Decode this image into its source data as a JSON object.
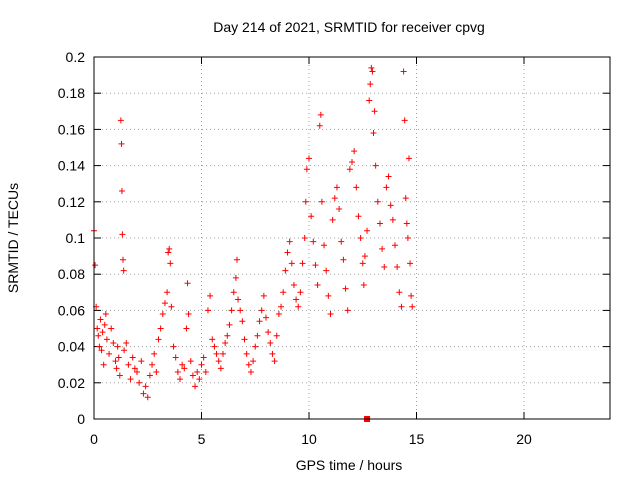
{
  "chart_data": {
    "type": "scatter",
    "title": "Day 214 of 2021, SRMTID for receiver cpvg",
    "xlabel": "GPS time / hours",
    "ylabel": "SRMTID / TECUs",
    "xlim": [
      0,
      24
    ],
    "ylim": [
      0,
      0.2
    ],
    "grid": true,
    "marker": "+",
    "xticks": [
      0,
      5,
      10,
      15,
      20
    ],
    "xtick_labels": [
      "0",
      "5",
      "10",
      "15",
      "20"
    ],
    "yticks": [
      0,
      0.02,
      0.04,
      0.06,
      0.08,
      0.1,
      0.12,
      0.14,
      0.16,
      0.18,
      0.2
    ],
    "ytick_labels": [
      "0",
      "0.02",
      "0.04",
      "0.06",
      "0.08",
      "0.1",
      "0.12",
      "0.14",
      "0.16",
      "0.18",
      "0.2"
    ],
    "series": [
      {
        "name": "SRMTID",
        "color": "#ff0000",
        "points": [
          [
            0.0,
            0.104
          ],
          [
            0.05,
            0.085
          ],
          [
            0.1,
            0.062
          ],
          [
            0.15,
            0.05
          ],
          [
            0.2,
            0.046
          ],
          [
            0.25,
            0.04
          ],
          [
            0.3,
            0.055
          ],
          [
            0.35,
            0.038
          ],
          [
            0.4,
            0.048
          ],
          [
            0.45,
            0.03
          ],
          [
            0.5,
            0.052
          ],
          [
            0.55,
            0.058
          ],
          [
            0.6,
            0.044
          ],
          [
            0.7,
            0.036
          ],
          [
            0.8,
            0.05
          ],
          [
            0.9,
            0.042
          ],
          [
            1.0,
            0.032
          ],
          [
            1.05,
            0.028
          ],
          [
            1.1,
            0.04
          ],
          [
            1.15,
            0.034
          ],
          [
            1.2,
            0.024
          ],
          [
            1.25,
            0.165
          ],
          [
            1.28,
            0.152
          ],
          [
            1.3,
            0.126
          ],
          [
            1.32,
            0.102
          ],
          [
            1.35,
            0.088
          ],
          [
            1.38,
            0.082
          ],
          [
            1.4,
            0.038
          ],
          [
            1.5,
            0.042
          ],
          [
            1.6,
            0.03
          ],
          [
            1.7,
            0.022
          ],
          [
            1.8,
            0.034
          ],
          [
            1.9,
            0.028
          ],
          [
            2.0,
            0.026
          ],
          [
            2.1,
            0.02
          ],
          [
            2.2,
            0.032
          ],
          [
            2.3,
            0.014
          ],
          [
            2.4,
            0.018
          ],
          [
            2.5,
            0.012
          ],
          [
            2.6,
            0.024
          ],
          [
            2.7,
            0.03
          ],
          [
            2.8,
            0.036
          ],
          [
            2.9,
            0.026
          ],
          [
            3.0,
            0.044
          ],
          [
            3.1,
            0.05
          ],
          [
            3.2,
            0.058
          ],
          [
            3.3,
            0.064
          ],
          [
            3.4,
            0.07
          ],
          [
            3.45,
            0.092
          ],
          [
            3.5,
            0.094
          ],
          [
            3.55,
            0.086
          ],
          [
            3.6,
            0.062
          ],
          [
            3.7,
            0.04
          ],
          [
            3.8,
            0.034
          ],
          [
            3.9,
            0.026
          ],
          [
            4.0,
            0.022
          ],
          [
            4.1,
            0.03
          ],
          [
            4.2,
            0.028
          ],
          [
            4.3,
            0.05
          ],
          [
            4.35,
            0.075
          ],
          [
            4.4,
            0.058
          ],
          [
            4.5,
            0.032
          ],
          [
            4.6,
            0.024
          ],
          [
            4.7,
            0.018
          ],
          [
            4.8,
            0.026
          ],
          [
            4.9,
            0.022
          ],
          [
            5.0,
            0.03
          ],
          [
            5.1,
            0.034
          ],
          [
            5.2,
            0.026
          ],
          [
            5.3,
            0.06
          ],
          [
            5.4,
            0.068
          ],
          [
            5.5,
            0.044
          ],
          [
            5.6,
            0.04
          ],
          [
            5.7,
            0.036
          ],
          [
            5.8,
            0.032
          ],
          [
            5.9,
            0.028
          ],
          [
            6.0,
            0.036
          ],
          [
            6.1,
            0.042
          ],
          [
            6.2,
            0.046
          ],
          [
            6.3,
            0.052
          ],
          [
            6.4,
            0.06
          ],
          [
            6.5,
            0.07
          ],
          [
            6.6,
            0.078
          ],
          [
            6.65,
            0.088
          ],
          [
            6.7,
            0.066
          ],
          [
            6.8,
            0.06
          ],
          [
            6.9,
            0.054
          ],
          [
            7.0,
            0.044
          ],
          [
            7.1,
            0.036
          ],
          [
            7.2,
            0.03
          ],
          [
            7.3,
            0.026
          ],
          [
            7.4,
            0.032
          ],
          [
            7.5,
            0.04
          ],
          [
            7.6,
            0.046
          ],
          [
            7.7,
            0.054
          ],
          [
            7.8,
            0.06
          ],
          [
            7.9,
            0.068
          ],
          [
            8.0,
            0.056
          ],
          [
            8.1,
            0.048
          ],
          [
            8.2,
            0.042
          ],
          [
            8.3,
            0.036
          ],
          [
            8.4,
            0.032
          ],
          [
            8.5,
            0.046
          ],
          [
            8.6,
            0.058
          ],
          [
            8.7,
            0.062
          ],
          [
            8.8,
            0.07
          ],
          [
            8.9,
            0.082
          ],
          [
            9.0,
            0.092
          ],
          [
            9.1,
            0.098
          ],
          [
            9.2,
            0.086
          ],
          [
            9.3,
            0.074
          ],
          [
            9.4,
            0.066
          ],
          [
            9.5,
            0.062
          ],
          [
            9.6,
            0.07
          ],
          [
            9.7,
            0.086
          ],
          [
            9.8,
            0.1
          ],
          [
            9.85,
            0.12
          ],
          [
            9.9,
            0.138
          ],
          [
            10.0,
            0.144
          ],
          [
            10.1,
            0.112
          ],
          [
            10.2,
            0.098
          ],
          [
            10.3,
            0.085
          ],
          [
            10.4,
            0.074
          ],
          [
            10.5,
            0.162
          ],
          [
            10.55,
            0.168
          ],
          [
            10.6,
            0.12
          ],
          [
            10.7,
            0.096
          ],
          [
            10.8,
            0.082
          ],
          [
            10.9,
            0.068
          ],
          [
            11.0,
            0.058
          ],
          [
            11.1,
            0.11
          ],
          [
            11.2,
            0.122
          ],
          [
            11.3,
            0.128
          ],
          [
            11.4,
            0.116
          ],
          [
            11.5,
            0.098
          ],
          [
            11.6,
            0.088
          ],
          [
            11.7,
            0.072
          ],
          [
            11.8,
            0.06
          ],
          [
            11.9,
            0.138
          ],
          [
            12.0,
            0.142
          ],
          [
            12.1,
            0.148
          ],
          [
            12.2,
            0.128
          ],
          [
            12.3,
            0.112
          ],
          [
            12.4,
            0.1
          ],
          [
            12.5,
            0.086
          ],
          [
            12.55,
            0.074
          ],
          [
            12.6,
            0.09
          ],
          [
            12.7,
            0.104
          ],
          [
            12.8,
            0.176
          ],
          [
            12.85,
            0.185
          ],
          [
            12.9,
            0.194
          ],
          [
            12.95,
            0.192
          ],
          [
            13.0,
            0.158
          ],
          [
            13.05,
            0.17
          ],
          [
            13.1,
            0.14
          ],
          [
            13.2,
            0.12
          ],
          [
            13.3,
            0.108
          ],
          [
            13.4,
            0.094
          ],
          [
            13.5,
            0.084
          ],
          [
            13.6,
            0.128
          ],
          [
            13.7,
            0.134
          ],
          [
            13.8,
            0.118
          ],
          [
            13.9,
            0.11
          ],
          [
            14.0,
            0.096
          ],
          [
            14.1,
            0.084
          ],
          [
            14.2,
            0.07
          ],
          [
            14.3,
            0.062
          ],
          [
            14.4,
            0.192
          ],
          [
            14.45,
            0.165
          ],
          [
            14.5,
            0.122
          ],
          [
            14.55,
            0.108
          ],
          [
            14.6,
            0.1
          ],
          [
            14.65,
            0.144
          ],
          [
            14.7,
            0.086
          ],
          [
            14.75,
            0.068
          ],
          [
            14.8,
            0.062
          ]
        ]
      }
    ],
    "marker_highlight": {
      "x": 12.7,
      "y": 0.0
    }
  }
}
